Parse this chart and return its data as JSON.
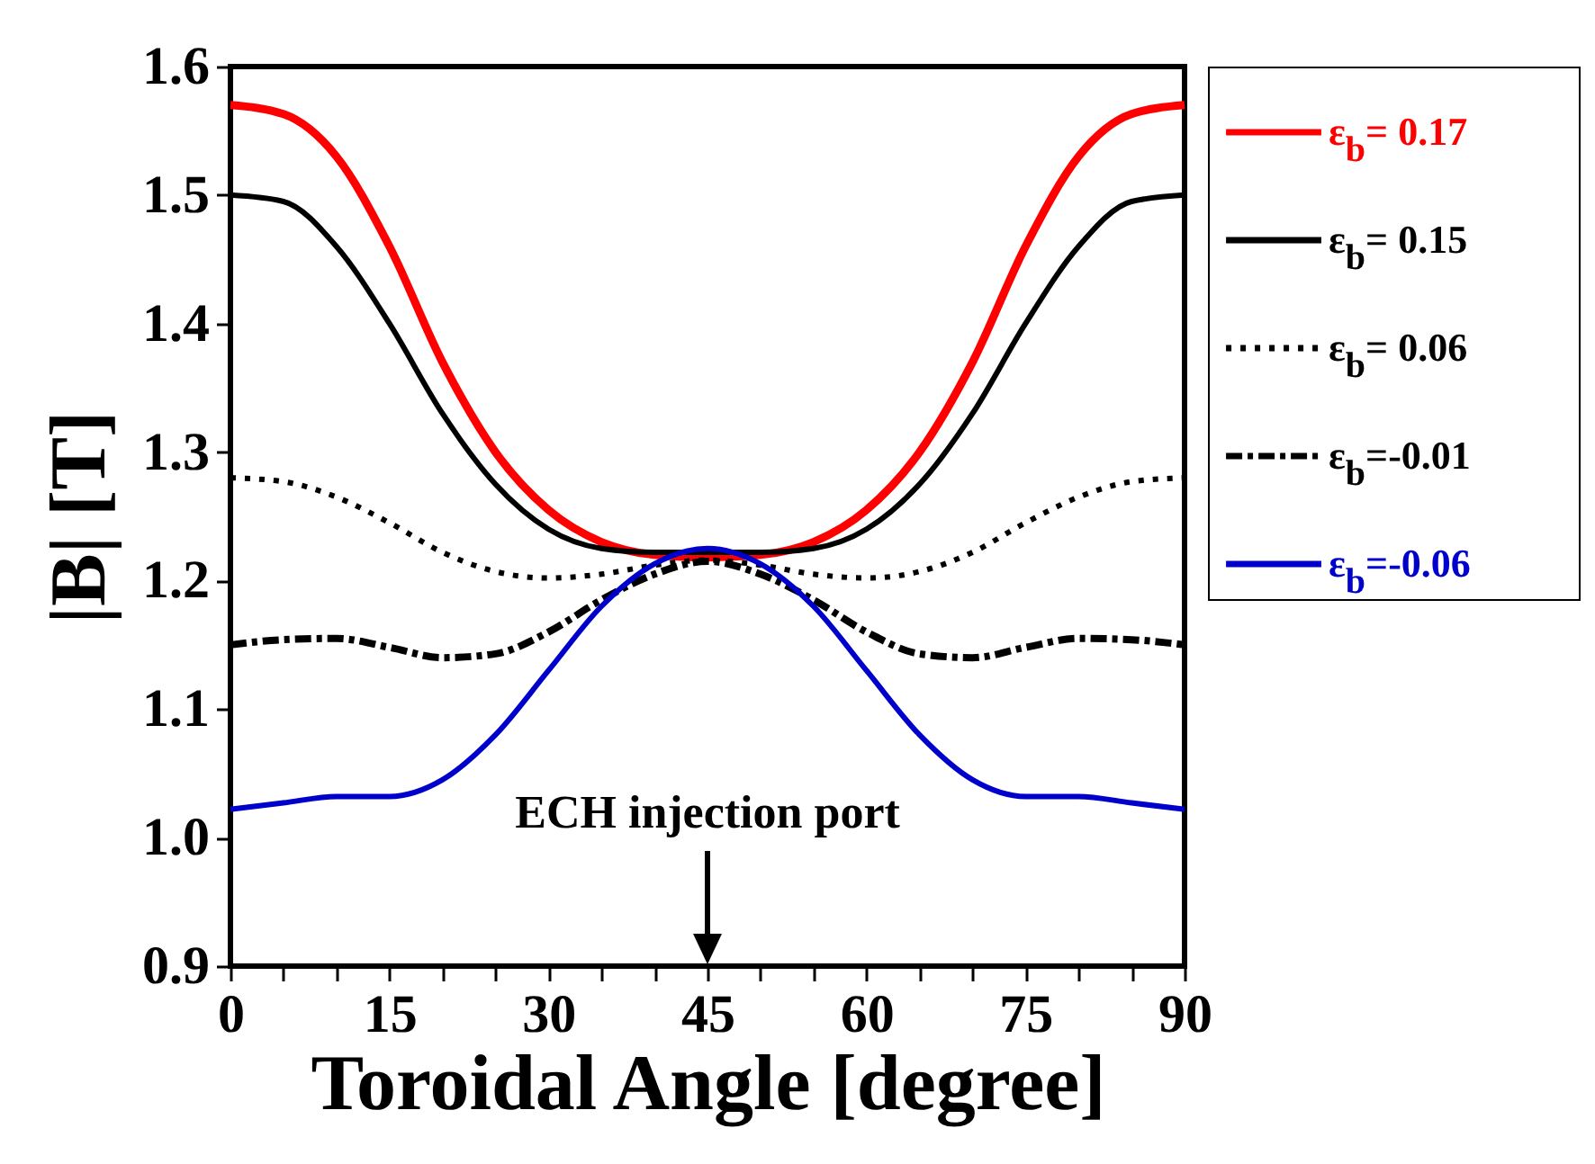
{
  "chart_data": {
    "type": "line",
    "xlabel": "Toroidal Angle [degree]",
    "ylabel": "|B| [T]",
    "x": [
      0,
      5,
      10,
      15,
      20,
      25,
      30,
      35,
      40,
      45,
      50,
      55,
      60,
      65,
      70,
      75,
      80,
      85,
      90
    ],
    "series": [
      {
        "name": "ε$_{b}$= 0.17",
        "color": "#ff0000",
        "line_style": "solid",
        "values": [
          1.57,
          1.563,
          1.53,
          1.46,
          1.37,
          1.3,
          1.255,
          1.23,
          1.22,
          1.218,
          1.22,
          1.23,
          1.255,
          1.3,
          1.37,
          1.46,
          1.53,
          1.563,
          1.57
        ]
      },
      {
        "name": "ε$_{b}$= 0.15",
        "color": "#000000",
        "line_style": "solid",
        "values": [
          1.5,
          1.495,
          1.46,
          1.4,
          1.33,
          1.275,
          1.24,
          1.225,
          1.222,
          1.222,
          1.222,
          1.225,
          1.24,
          1.275,
          1.33,
          1.4,
          1.46,
          1.495,
          1.5
        ]
      },
      {
        "name": "ε$_{b}$= 0.06",
        "color": "#000000",
        "line_style": "dotted",
        "values": [
          1.28,
          1.277,
          1.265,
          1.245,
          1.222,
          1.207,
          1.202,
          1.205,
          1.212,
          1.216,
          1.212,
          1.205,
          1.202,
          1.207,
          1.222,
          1.245,
          1.265,
          1.277,
          1.28
        ]
      },
      {
        "name": "ε$_{b}$=-0.01",
        "color": "#000000",
        "line_style": "dashed",
        "values": [
          1.15,
          1.154,
          1.155,
          1.148,
          1.14,
          1.143,
          1.16,
          1.185,
          1.205,
          1.215,
          1.205,
          1.185,
          1.16,
          1.143,
          1.14,
          1.148,
          1.155,
          1.154,
          1.15
        ]
      },
      {
        "name": "ε$_{b}$=-0.06",
        "color": "#0000cc",
        "line_style": "solid",
        "values": [
          1.022,
          1.027,
          1.032,
          1.032,
          1.045,
          1.08,
          1.13,
          1.18,
          1.213,
          1.225,
          1.213,
          1.18,
          1.13,
          1.08,
          1.045,
          1.032,
          1.032,
          1.027,
          1.022
        ]
      }
    ],
    "xlim": [
      0,
      90
    ],
    "xticks": [
      0,
      {
        "value": 5,
        "label": null
      },
      {
        "value": 10,
        "label": null
      },
      15,
      {
        "value": 20,
        "label": null
      },
      {
        "value": 25,
        "label": null
      },
      30,
      {
        "value": 35,
        "label": null
      },
      {
        "value": 40,
        "label": null
      },
      45,
      {
        "value": 50,
        "label": null
      },
      {
        "value": 55,
        "label": null
      },
      60,
      {
        "value": 65,
        "label": null
      },
      {
        "value": 70,
        "label": null
      },
      75,
      {
        "value": 80,
        "label": null
      },
      {
        "value": 85,
        "label": null
      },
      90
    ],
    "ylim": [
      0.9,
      1.6
    ],
    "yticks": [
      0.9,
      {
        "value": 1.0,
        "label": "1.0"
      },
      1.1,
      1.2,
      1.3,
      1.4,
      1.5,
      1.6
    ],
    "grid": false,
    "legend": "right",
    "marker": "none",
    "annotations": [
      "ECH injection port"
    ]
  }
}
